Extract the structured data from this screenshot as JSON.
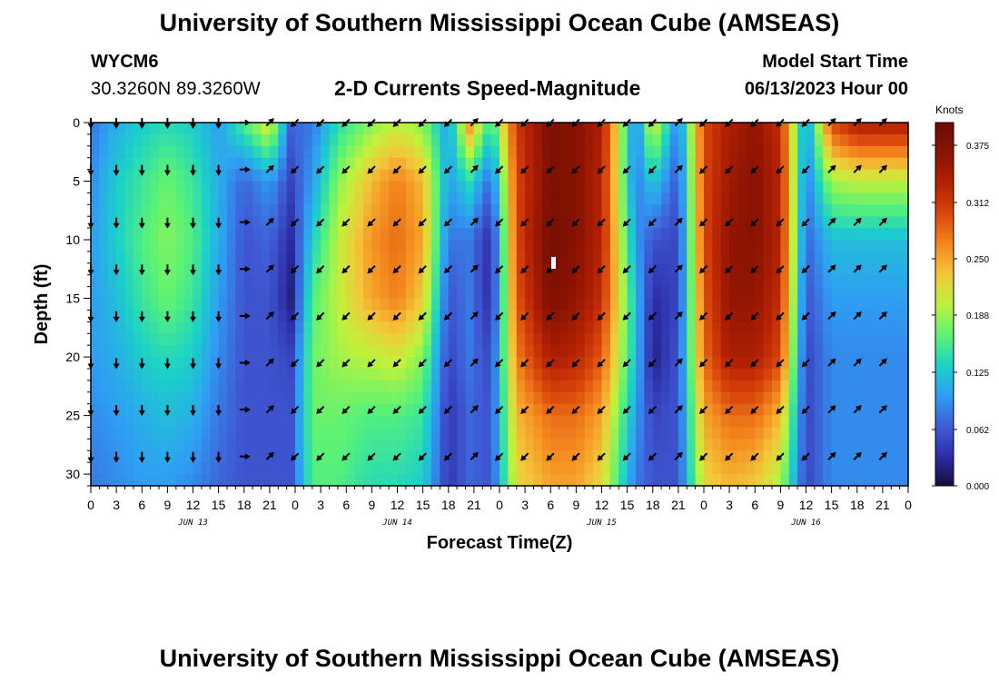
{
  "page": {
    "title_top": "University of Southern Mississippi Ocean Cube (AMSEAS)",
    "title_bottom": "University of Southern Mississippi Ocean Cube (AMSEAS)",
    "station": "WYCM6",
    "coordinates": "30.3260N  89.3260W",
    "subtitle": "2-D Currents Speed-Magnitude",
    "model_start_label": "Model Start Time",
    "model_start_date": "06/13/2023 Hour 00"
  },
  "chart_data": {
    "type": "heatmap",
    "title": "2-D Currents Speed-Magnitude",
    "xlabel": "Forecast Time(Z)",
    "ylabel": "Depth (ft)",
    "x_range_hours": [
      0,
      96
    ],
    "y_range_ft": [
      0,
      31
    ],
    "y_inverted": true,
    "x_tick_hours": [
      0,
      3,
      6,
      9,
      12,
      15,
      18,
      21,
      24,
      27,
      30,
      33,
      36,
      39,
      42,
      45,
      48,
      51,
      54,
      57,
      60,
      63,
      66,
      69,
      72,
      75,
      78,
      81,
      84,
      87,
      90,
      93,
      96
    ],
    "x_tick_labels": [
      "0",
      "3",
      "6",
      "9",
      "12",
      "15",
      "18",
      "21",
      "0",
      "3",
      "6",
      "9",
      "12",
      "15",
      "18",
      "21",
      "0",
      "3",
      "6",
      "9",
      "12",
      "15",
      "18",
      "21",
      "0",
      "3",
      "6",
      "9",
      "12",
      "15",
      "18",
      "21",
      "0"
    ],
    "day_labels": [
      {
        "hour": 12,
        "text": "JUN 13"
      },
      {
        "hour": 36,
        "text": "JUN 14"
      },
      {
        "hour": 60,
        "text": "JUN 15"
      },
      {
        "hour": 84,
        "text": "JUN 16"
      }
    ],
    "y_ticks": [
      0,
      5,
      10,
      15,
      20,
      25,
      30
    ],
    "colorbar": {
      "unit": "Knots",
      "min": 0.0,
      "max": 0.4,
      "tick_values": [
        0.0,
        0.062,
        0.125,
        0.188,
        0.25,
        0.312,
        0.375
      ],
      "tick_labels": [
        "0.000",
        "0.062",
        "0.125",
        "0.188",
        "0.250",
        "0.312",
        "0.375"
      ]
    },
    "speed_profiles_knots": {
      "depths_ft": [
        0,
        5,
        10,
        15,
        20,
        25,
        31
      ],
      "columns": [
        {
          "hour": 0,
          "speeds": [
            0.08,
            0.09,
            0.1,
            0.1,
            0.1,
            0.09,
            0.08
          ]
        },
        {
          "hour": 3,
          "speeds": [
            0.11,
            0.13,
            0.13,
            0.12,
            0.11,
            0.1,
            0.09
          ]
        },
        {
          "hour": 6,
          "speeds": [
            0.13,
            0.15,
            0.16,
            0.15,
            0.13,
            0.11,
            0.1
          ]
        },
        {
          "hour": 9,
          "speeds": [
            0.14,
            0.17,
            0.18,
            0.17,
            0.14,
            0.12,
            0.1
          ]
        },
        {
          "hour": 12,
          "speeds": [
            0.13,
            0.15,
            0.16,
            0.15,
            0.13,
            0.11,
            0.09
          ]
        },
        {
          "hour": 15,
          "speeds": [
            0.1,
            0.11,
            0.11,
            0.1,
            0.09,
            0.08,
            0.07
          ]
        },
        {
          "hour": 18,
          "speeds": [
            0.16,
            0.07,
            0.06,
            0.06,
            0.06,
            0.06,
            0.06
          ]
        },
        {
          "hour": 21,
          "speeds": [
            0.22,
            0.1,
            0.07,
            0.06,
            0.06,
            0.06,
            0.06
          ]
        },
        {
          "hour": 23.5,
          "speeds": [
            0.07,
            0.05,
            0.03,
            0.02,
            0.05,
            0.06,
            0.06
          ]
        },
        {
          "hour": 26,
          "speeds": [
            0.08,
            0.1,
            0.13,
            0.16,
            0.17,
            0.17,
            0.16
          ]
        },
        {
          "hour": 29,
          "speeds": [
            0.14,
            0.18,
            0.2,
            0.2,
            0.19,
            0.17,
            0.16
          ]
        },
        {
          "hour": 33,
          "speeds": [
            0.18,
            0.24,
            0.26,
            0.25,
            0.2,
            0.16,
            0.14
          ]
        },
        {
          "hour": 36,
          "speeds": [
            0.2,
            0.27,
            0.28,
            0.27,
            0.21,
            0.16,
            0.14
          ]
        },
        {
          "hour": 39,
          "speeds": [
            0.18,
            0.24,
            0.25,
            0.23,
            0.18,
            0.15,
            0.13
          ]
        },
        {
          "hour": 42,
          "speeds": [
            0.1,
            0.1,
            0.08,
            0.06,
            0.05,
            0.04,
            0.04
          ]
        },
        {
          "hour": 44.5,
          "speeds": [
            0.26,
            0.14,
            0.08,
            0.08,
            0.08,
            0.07,
            0.07
          ]
        },
        {
          "hour": 47,
          "speeds": [
            0.14,
            0.07,
            0.03,
            0.03,
            0.05,
            0.06,
            0.06
          ]
        },
        {
          "hour": 50,
          "speeds": [
            0.31,
            0.3,
            0.3,
            0.29,
            0.27,
            0.24,
            0.22
          ]
        },
        {
          "hour": 54,
          "speeds": [
            0.38,
            0.38,
            0.39,
            0.38,
            0.34,
            0.28,
            0.25
          ]
        },
        {
          "hour": 57,
          "speeds": [
            0.37,
            0.37,
            0.37,
            0.36,
            0.33,
            0.28,
            0.25
          ]
        },
        {
          "hour": 60,
          "speeds": [
            0.34,
            0.33,
            0.33,
            0.32,
            0.29,
            0.25,
            0.22
          ]
        },
        {
          "hour": 64,
          "speeds": [
            0.08,
            0.08,
            0.1,
            0.12,
            0.12,
            0.1,
            0.08
          ]
        },
        {
          "hour": 66,
          "speeds": [
            0.22,
            0.13,
            0.06,
            0.03,
            0.02,
            0.05,
            0.06
          ]
        },
        {
          "hour": 69,
          "speeds": [
            0.08,
            0.06,
            0.05,
            0.05,
            0.06,
            0.06,
            0.06
          ]
        },
        {
          "hour": 72,
          "speeds": [
            0.3,
            0.3,
            0.3,
            0.29,
            0.28,
            0.25,
            0.22
          ]
        },
        {
          "hour": 75,
          "speeds": [
            0.34,
            0.35,
            0.36,
            0.36,
            0.34,
            0.28,
            0.24
          ]
        },
        {
          "hour": 78,
          "speeds": [
            0.36,
            0.37,
            0.37,
            0.36,
            0.34,
            0.28,
            0.23
          ]
        },
        {
          "hour": 81,
          "speeds": [
            0.32,
            0.33,
            0.33,
            0.32,
            0.3,
            0.24,
            0.19
          ]
        },
        {
          "hour": 84,
          "speeds": [
            0.09,
            0.08,
            0.07,
            0.06,
            0.05,
            0.05,
            0.05
          ]
        },
        {
          "hour": 87,
          "speeds": [
            0.3,
            0.19,
            0.12,
            0.1,
            0.09,
            0.09,
            0.09
          ]
        },
        {
          "hour": 90,
          "speeds": [
            0.34,
            0.2,
            0.12,
            0.1,
            0.09,
            0.09,
            0.09
          ]
        }
      ]
    },
    "vector_arrows": {
      "hours": [
        0,
        3,
        6,
        9,
        12,
        15,
        18,
        21,
        24,
        27,
        30,
        33,
        36,
        39,
        42,
        45,
        48,
        51,
        54,
        57,
        60,
        63,
        66,
        69,
        72,
        75,
        78,
        81,
        84,
        87,
        90,
        93
      ],
      "depths_ft": [
        0,
        4,
        8.5,
        12.5,
        16.5,
        20.5,
        24.5,
        28.5
      ],
      "direction_deg_by_hour": [
        180,
        180,
        180,
        180,
        180,
        180,
        90,
        45,
        225,
        225,
        225,
        225,
        225,
        225,
        225,
        45,
        225,
        225,
        225,
        225,
        225,
        225,
        225,
        45,
        225,
        225,
        225,
        225,
        225,
        45,
        45,
        45
      ]
    }
  }
}
